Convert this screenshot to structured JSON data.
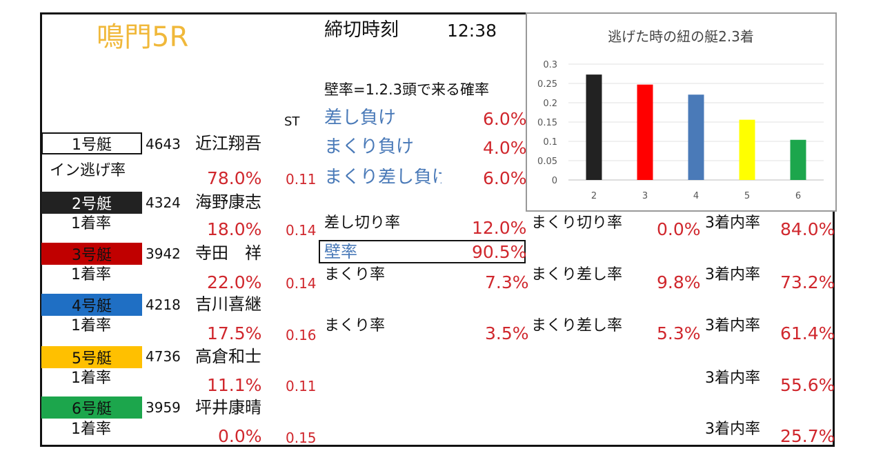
{
  "race": {
    "title": "鳴門5R",
    "deadline_label": "締切時刻",
    "deadline_time": "12:38",
    "st_header": "ST"
  },
  "boats": [
    {
      "label": "1号艇",
      "reg": "4643",
      "name": "近江翔吾",
      "rate_label": "イン逃げ率",
      "rate": "78.0%",
      "st": "0.11",
      "color": "#ffffff"
    },
    {
      "label": "2号艇",
      "reg": "4324",
      "name": "海野康志",
      "rate_label": "1着率",
      "rate": "18.0%",
      "st": "0.14",
      "color": "#222222"
    },
    {
      "label": "3号艇",
      "reg": "3942",
      "name": "寺田　祥",
      "rate_label": "1着率",
      "rate": "22.0%",
      "st": "0.14",
      "color": "#c00000"
    },
    {
      "label": "4号艇",
      "reg": "4218",
      "name": "吉川喜継",
      "rate_label": "1着率",
      "rate": "17.5%",
      "st": "0.16",
      "color": "#1f6fc4"
    },
    {
      "label": "5号艇",
      "reg": "4736",
      "name": "高倉和士",
      "rate_label": "1着率",
      "rate": "11.1%",
      "st": "0.11",
      "color": "#ffc000"
    },
    {
      "label": "6号艇",
      "reg": "3959",
      "name": "坪井康晴",
      "rate_label": "1着率",
      "rate": "0.0%",
      "st": "0.15",
      "color": "#1ca64c"
    }
  ],
  "wall": {
    "header": "壁率=1.2.3頭で来る確率",
    "sashi_make_label": "差し負け",
    "sashi_make": "6.0%",
    "makuri_make_label": "まくり負け",
    "makuri_make": "4.0%",
    "makurisashi_make_label": "まくり差し負け",
    "makurisashi_make": "6.0%",
    "wall_label": "壁率",
    "wall_rate": "90.5%"
  },
  "stats": {
    "b2_sashikiri_label": "差し切り率",
    "b2_sashikiri": "12.0%",
    "b2_makurikiri_label": "まくり切り率",
    "b2_makurikiri": "0.0%",
    "b2_top3_label": "3着内率",
    "b2_top3": "84.0%",
    "b3_makuri_label": "まくり率",
    "b3_makuri": "7.3%",
    "b3_makurisashi_label": "まくり差し率",
    "b3_makurisashi": "9.8%",
    "b3_top3_label": "3着内率",
    "b3_top3": "73.2%",
    "b4_makuri_label": "まくり率",
    "b4_makuri": "3.5%",
    "b4_makurisashi_label": "まくり差し率",
    "b4_makurisashi": "5.3%",
    "b4_top3_label": "3着内率",
    "b4_top3": "61.4%",
    "b5_top3_label": "3着内率",
    "b5_top3": "55.6%",
    "b6_top3_label": "3着内率",
    "b6_top3": "25.7%"
  },
  "chart_data": {
    "type": "bar",
    "title": "逃げた時の紐の艇2.3着",
    "categories": [
      "2",
      "3",
      "4",
      "5",
      "6"
    ],
    "values": [
      0.273,
      0.247,
      0.221,
      0.156,
      0.104
    ],
    "colors": [
      "#222222",
      "#ff0000",
      "#4a7ab8",
      "#ffff00",
      "#1ca64c"
    ],
    "y_ticks": [
      "0",
      "0.05",
      "0.1",
      "0.15",
      "0.2",
      "0.25",
      "0.3"
    ],
    "ylim": [
      0,
      0.3
    ],
    "xlabel": "",
    "ylabel": "",
    "grid": true
  }
}
